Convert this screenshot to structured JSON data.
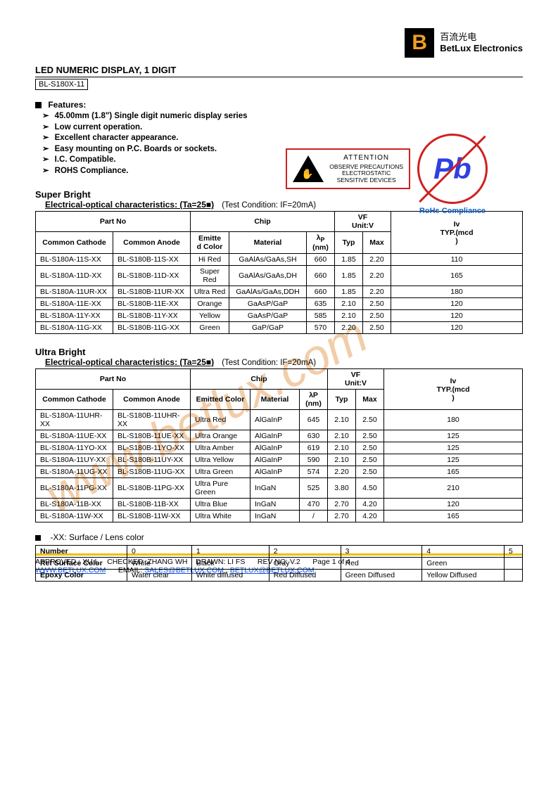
{
  "logo": {
    "letter": "B",
    "cn": "百流光电",
    "en": "BetLux Electronics"
  },
  "title": "LED NUMERIC DISPLAY, 1 DIGIT",
  "part_number": "BL-S180X-11",
  "features_label": "Features:",
  "features": [
    "45.00mm (1.8\") Single digit numeric display series",
    "Low current operation.",
    "Excellent character appearance.",
    "Easy mounting on P.C. Boards or sockets.",
    "I.C. Compatible.",
    "ROHS Compliance."
  ],
  "esd": {
    "attention": "ATTENTION",
    "line1": "OBSERVE PRECAUTIONS",
    "line2": "ELECTROSTATIC",
    "line3": "SENSITIVE DEVICES"
  },
  "rohs": {
    "pb": "Pb",
    "label": "RoHs Compliance"
  },
  "super_bright": {
    "heading": "Super Bright",
    "char_title": "Electrical-optical characteristics: (Ta=25■)",
    "test_cond": "(Test Condition: IF=20mA)",
    "headers": {
      "part_no": "Part No",
      "chip": "Chip",
      "vf": "VF\nUnit:V",
      "iv": "Iv\nTYP.(mcd)",
      "cc": "Common Cathode",
      "ca": "Common Anode",
      "emit": "Emitted Color",
      "mat": "Material",
      "lp": "λP\n(nm)",
      "typ": "Typ",
      "max": "Max"
    },
    "rows": [
      {
        "cc": "BL-S180A-11S-XX",
        "ca": "BL-S180B-11S-XX",
        "col": "Hi Red",
        "mat": "GaAlAs/GaAs,SH",
        "lp": "660",
        "typ": "1.85",
        "max": "2.20",
        "iv": "110"
      },
      {
        "cc": "BL-S180A-11D-XX",
        "ca": "BL-S180B-11D-XX",
        "col": "Super Red",
        "mat": "GaAlAs/GaAs,DH",
        "lp": "660",
        "typ": "1.85",
        "max": "2.20",
        "iv": "165"
      },
      {
        "cc": "BL-S180A-11UR-XX",
        "ca": "BL-S180B-11UR-XX",
        "col": "Ultra Red",
        "mat": "GaAlAs/GaAs,DDH",
        "lp": "660",
        "typ": "1.85",
        "max": "2.20",
        "iv": "180"
      },
      {
        "cc": "BL-S180A-11E-XX",
        "ca": "BL-S180B-11E-XX",
        "col": "Orange",
        "mat": "GaAsP/GaP",
        "lp": "635",
        "typ": "2.10",
        "max": "2.50",
        "iv": "120"
      },
      {
        "cc": "BL-S180A-11Y-XX",
        "ca": "BL-S180B-11Y-XX",
        "col": "Yellow",
        "mat": "GaAsP/GaP",
        "lp": "585",
        "typ": "2.10",
        "max": "2.50",
        "iv": "120"
      },
      {
        "cc": "BL-S180A-11G-XX",
        "ca": "BL-S180B-11G-XX",
        "col": "Green",
        "mat": "GaP/GaP",
        "lp": "570",
        "typ": "2.20",
        "max": "2.50",
        "iv": "120"
      }
    ]
  },
  "ultra_bright": {
    "heading": "Ultra Bright",
    "char_title": "Electrical-optical characteristics: (Ta=25■)",
    "test_cond": "(Test Condition: IF=20mA)",
    "rows": [
      {
        "cc": "BL-S180A-11UHR-XX",
        "ca": "BL-S180B-11UHR-XX",
        "col": "Ultra Red",
        "mat": "AlGaInP",
        "lp": "645",
        "typ": "2.10",
        "max": "2.50",
        "iv": "180"
      },
      {
        "cc": "BL-S180A-11UE-XX",
        "ca": "BL-S180B-11UE-XX",
        "col": "Ultra Orange",
        "mat": "AlGaInP",
        "lp": "630",
        "typ": "2.10",
        "max": "2.50",
        "iv": "125"
      },
      {
        "cc": "BL-S180A-11YO-XX",
        "ca": "BL-S180B-11YO-XX",
        "col": "Ultra Amber",
        "mat": "AlGaInP",
        "lp": "619",
        "typ": "2.10",
        "max": "2.50",
        "iv": "125"
      },
      {
        "cc": "BL-S180A-11UY-XX",
        "ca": "BL-S180B-11UY-XX",
        "col": "Ultra Yellow",
        "mat": "AlGaInP",
        "lp": "590",
        "typ": "2.10",
        "max": "2.50",
        "iv": "125"
      },
      {
        "cc": "BL-S180A-11UG-XX",
        "ca": "BL-S180B-11UG-XX",
        "col": "Ultra Green",
        "mat": "AlGaInP",
        "lp": "574",
        "typ": "2.20",
        "max": "2.50",
        "iv": "165"
      },
      {
        "cc": "BL-S180A-11PG-XX",
        "ca": "BL-S180B-11PG-XX",
        "col": "Ultra Pure Green",
        "mat": "InGaN",
        "lp": "525",
        "typ": "3.80",
        "max": "4.50",
        "iv": "210"
      },
      {
        "cc": "BL-S180A-11B-XX",
        "ca": "BL-S180B-11B-XX",
        "col": "Ultra Blue",
        "mat": "InGaN",
        "lp": "470",
        "typ": "2.70",
        "max": "4.20",
        "iv": "120"
      },
      {
        "cc": "BL-S180A-11W-XX",
        "ca": "BL-S180B-11W-XX",
        "col": "Ultra White",
        "mat": "InGaN",
        "lp": "/",
        "typ": "2.70",
        "max": "4.20",
        "iv": "165"
      }
    ]
  },
  "lens": {
    "note": "-XX: Surface / Lens color",
    "rows": [
      {
        "label": "Number",
        "cells": [
          "0",
          "1",
          "2",
          "3",
          "4",
          "5"
        ]
      },
      {
        "label": "Ref Surface Color",
        "cells": [
          "White",
          "Black",
          "Gray",
          "Red",
          "Green",
          ""
        ]
      },
      {
        "label": "Epoxy Color",
        "cells": [
          "Water clear",
          "White diffused",
          "Red Diffused",
          "Green Diffused",
          "Yellow Diffused",
          ""
        ]
      }
    ]
  },
  "footer": {
    "approved": "APPROVED : XU L",
    "checked": "CHECKED :ZHANG WH",
    "drawn": "DRAWN: LI FS",
    "rev": "REV NO: V.2",
    "page": "Page 1 of 4",
    "url": "WWW.BETLUX.COM",
    "email_label": "EMAIL:",
    "email1": "SALES@BETLUX.COM",
    "email2": "BETLUX@BETLUX.COM"
  },
  "watermarks": {
    "wm1": "om",
    "wm2": "www.betlux.com",
    "wm3": "isee"
  }
}
